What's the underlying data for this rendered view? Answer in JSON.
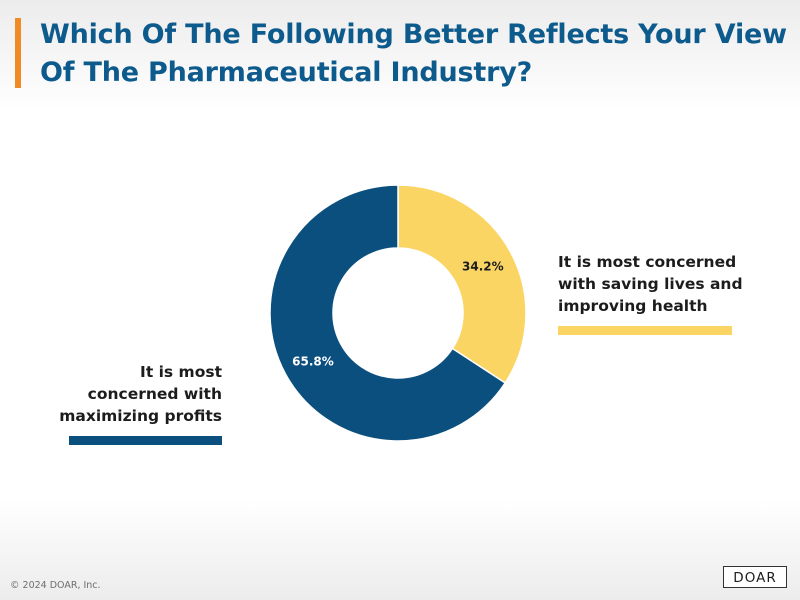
{
  "header": {
    "title": "Which Of The Following Better Reflects Your View Of The Pharmaceutical Industry?"
  },
  "chart_data": {
    "type": "pie",
    "variant": "donut",
    "title": "Which Of The Following Better Reflects Your View Of The Pharmaceutical Industry?",
    "slices": [
      {
        "label": "It is most concerned with saving lives and improving health",
        "value": 34.2,
        "value_label": "34.2%",
        "color": "#fbd564",
        "label_color": "#1c1c1c"
      },
      {
        "label": "It is most concerned with maximizing profits",
        "value": 65.8,
        "value_label": "65.8%",
        "color": "#0b4f7f",
        "label_color": "#ffffff"
      }
    ]
  },
  "legend": {
    "right_text": "It is most concerned\nwith saving lives and\nimproving health",
    "left_text": "It is most\nconcerned with\nmaximizing profits"
  },
  "footer": {
    "copyright": "© 2024 DOAR, Inc.",
    "logo_text": "DOAR"
  },
  "colors": {
    "accent": "#f08a24",
    "title": "#0d5a8c",
    "yellow": "#fbd564",
    "blue": "#0b4f7f"
  }
}
